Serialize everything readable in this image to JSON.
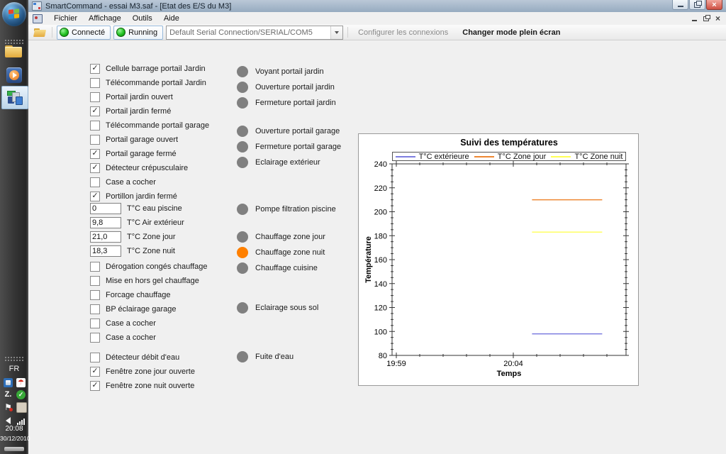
{
  "taskbar": {
    "language": "FR",
    "clock": "20:08",
    "date": "30/12/2010"
  },
  "window": {
    "title": "SmartCommand - essai M3.saf - [Etat des E/S du M3]",
    "menus": [
      {
        "label": "Fichier"
      },
      {
        "label": "Affichage"
      },
      {
        "label": "Outils"
      },
      {
        "label": "Aide"
      }
    ],
    "toolbar": {
      "connect_label": "Connecté",
      "running_label": "Running",
      "connection_value": "Default Serial Connection/SERIAL/COM5",
      "configure_label": "Configurer les connexions",
      "fullscreen_label": "Changer mode plein écran"
    }
  },
  "io_panel": {
    "checkboxes_top": [
      {
        "label": "Cellule barrage portail Jardin",
        "checked": true
      },
      {
        "label": "Télécommande portail Jardin",
        "checked": false
      },
      {
        "label": "Portail jardin ouvert",
        "checked": false
      },
      {
        "label": "Portail jardin fermé",
        "checked": true
      },
      {
        "label": "Télécommande portail garage",
        "checked": false
      },
      {
        "label": "Portail garage ouvert",
        "checked": false
      },
      {
        "label": "Portail garage fermé",
        "checked": true
      },
      {
        "label": "Détecteur crépusculaire",
        "checked": true
      },
      {
        "label": "Case a cocher",
        "checked": false
      },
      {
        "label": "Portillon jardin fermé",
        "checked": true
      }
    ],
    "temperature_inputs": [
      {
        "value": "0",
        "label": "T°C eau piscine"
      },
      {
        "value": "9,8",
        "label": "T°C Air extérieur"
      },
      {
        "value": "21,0",
        "label": "T°C Zone jour"
      },
      {
        "value": "18,3",
        "label": "T°C Zone nuit"
      }
    ],
    "checkboxes_bottom": [
      {
        "label": "Dérogation congés chauffage",
        "checked": false
      },
      {
        "label": "Mise en hors gel chauffage",
        "checked": false
      },
      {
        "label": "Forcage chauffage",
        "checked": false
      },
      {
        "label": "BP éclairage garage",
        "checked": false
      },
      {
        "label": "Case a cocher",
        "checked": false
      },
      {
        "label": "Case a cocher",
        "checked": false
      },
      {
        "label": "Détecteur débit d'eau",
        "checked": false,
        "mt": 14
      },
      {
        "label": "Fenêtre zone jour ouverte",
        "checked": true
      },
      {
        "label": "Fenêtre zone nuit ouverte",
        "checked": true
      }
    ],
    "indicators": [
      {
        "label": "Voyant portail jardin",
        "on": false
      },
      {
        "label": "Ouverture portail jardin",
        "on": false
      },
      {
        "label": "Fermeture portail jardin",
        "on": false
      },
      {
        "label": "Ouverture portail garage",
        "on": false,
        "mt": 24
      },
      {
        "label": "Fermeture portail garage",
        "on": false
      },
      {
        "label": "Eclairage extérieur",
        "on": false
      },
      {
        "label": "Pompe filtration piscine",
        "on": false,
        "mt": 50
      },
      {
        "label": "Chauffage zone jour",
        "on": false,
        "mt": 23
      },
      {
        "label": "Chauffage zone nuit",
        "on": true
      },
      {
        "label": "Chauffage cuisine",
        "on": false
      },
      {
        "label": "Eclairage sous sol",
        "on": false,
        "mt": 40
      },
      {
        "label": "Fuite d'eau",
        "on": false,
        "mt": 53
      }
    ]
  },
  "colors": {
    "indicator_on": "#ff8000",
    "indicator_off": "#808080",
    "status_green": "#21c021",
    "axis": "#333333"
  },
  "chart_data": {
    "type": "line",
    "title": "Suivi des températures",
    "xlabel": "Temps",
    "ylabel": "Température",
    "ylim": [
      80,
      240
    ],
    "y_major_step": 20,
    "y_minor_step": 5,
    "x_minor_step_min": 1,
    "x_span_min": 9.8,
    "x_ticks_labeled": [
      {
        "label": "19:59",
        "min": 0
      },
      {
        "label": "20:04",
        "min": 5
      }
    ],
    "grid": false,
    "legend_position": "top",
    "series": [
      {
        "name": "T°C extérieure",
        "color": "#7e7ee0",
        "value": 98,
        "from_min": 5.8,
        "to_min": 8.8
      },
      {
        "name": "T°C Zone jour",
        "color": "#ee8833",
        "value": 210,
        "from_min": 5.8,
        "to_min": 8.8
      },
      {
        "name": "T°C Zone nuit",
        "color": "#ffff55",
        "value": 183,
        "from_min": 5.8,
        "to_min": 8.8
      }
    ]
  }
}
